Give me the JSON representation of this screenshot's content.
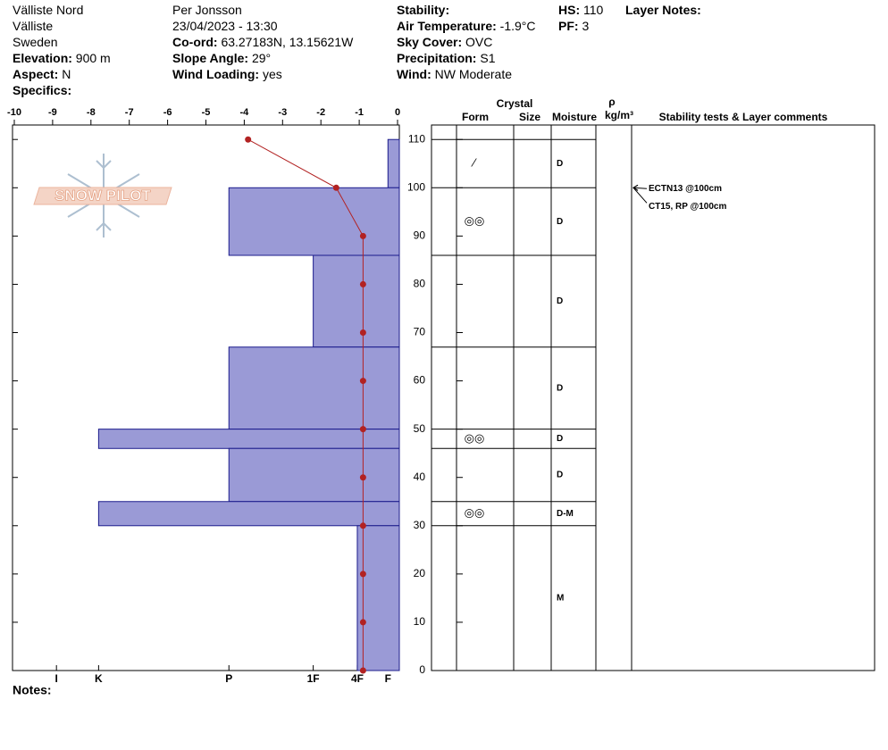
{
  "header": {
    "columns": [
      [
        {
          "value": "Välliste Nord"
        },
        {
          "value": "Välliste"
        },
        {
          "value": "Sweden"
        },
        {
          "label": "Elevation:",
          "value": "900 m"
        },
        {
          "label": "Aspect:",
          "value": "N"
        },
        {
          "label": "Specifics:"
        }
      ],
      [
        {
          "value": "Per Jonsson"
        },
        {
          "value": "23/04/2023 - 13:30"
        },
        {
          "label": "Co-ord:",
          "value": "63.27183N, 13.15621W"
        },
        {
          "label": "Slope Angle:",
          "value": "29°"
        },
        {
          "label": "Wind Loading:",
          "value": "yes"
        }
      ],
      [
        {
          "label": "Stability:"
        },
        {
          "label": "Air Temperature:",
          "value": "-1.9°C"
        },
        {
          "label": "Sky Cover:",
          "value": "OVC"
        },
        {
          "label": "Precipitation:",
          "value": "S1"
        },
        {
          "label": "Wind:",
          "value": "NW Moderate"
        }
      ],
      [
        {
          "label": "HS:",
          "value": "110"
        },
        {
          "label": "PF:",
          "value": "3"
        }
      ],
      [
        {
          "label": "Layer Notes:"
        }
      ]
    ],
    "notes": "Notes:",
    "logo": "SNOW PILOT"
  },
  "chart_data": {
    "type": "snow_profile",
    "xlim": [
      -10,
      0
    ],
    "xticks": [
      -10,
      -9,
      -8,
      -7,
      -6,
      -5,
      -4,
      -3,
      -2,
      -1,
      0
    ],
    "ylim": [
      0,
      113
    ],
    "yticks": [
      0,
      10,
      20,
      30,
      40,
      50,
      60,
      70,
      80,
      90,
      100,
      110
    ],
    "x2ticks": [
      {
        "value": -8.9,
        "label": "I"
      },
      {
        "value": -7.8,
        "label": "K"
      },
      {
        "value": -4.4,
        "label": "P"
      },
      {
        "value": -2.2,
        "label": "1F"
      },
      {
        "value": -1.05,
        "label": "4F"
      },
      {
        "value": -0.25,
        "label": "F"
      }
    ],
    "temperature": {
      "color": "#b22222",
      "depths": [
        110,
        100,
        90,
        80,
        70,
        60,
        50,
        40,
        30,
        20,
        10,
        0
      ],
      "values": [
        -3.9,
        -1.6,
        -0.9,
        -0.9,
        -0.9,
        -0.9,
        -0.9,
        -0.9,
        -0.9,
        -0.9,
        -0.9,
        -0.9
      ]
    },
    "layers": {
      "color": "#9a9ad6",
      "tops": [
        110,
        100,
        86,
        67,
        50,
        46,
        35,
        30
      ],
      "bottoms": [
        100,
        86,
        67,
        50,
        46,
        35,
        30,
        0
      ],
      "hardness": [
        -0.25,
        -4.4,
        -2.2,
        -4.4,
        -7.8,
        -4.4,
        -7.8,
        -1.05
      ],
      "form": [
        "⁄",
        "◎◎",
        "",
        "",
        "◎◎",
        "",
        "◎◎",
        ""
      ],
      "moisture": [
        "D",
        "D",
        "D",
        "D",
        "D",
        "D",
        "D-M",
        "M"
      ]
    },
    "column_headers": {
      "crystal": "Crystal",
      "form": "Form",
      "size": "Size",
      "moisture": "Moisture",
      "rho": "ρ",
      "density": "kg/m³",
      "comments": "Stability tests & Layer comments"
    },
    "stability_tests": [
      {
        "text": "ECTN13 @100cm",
        "depth": 100
      },
      {
        "text": "CT15, RP @100cm",
        "depth": 100
      }
    ]
  }
}
